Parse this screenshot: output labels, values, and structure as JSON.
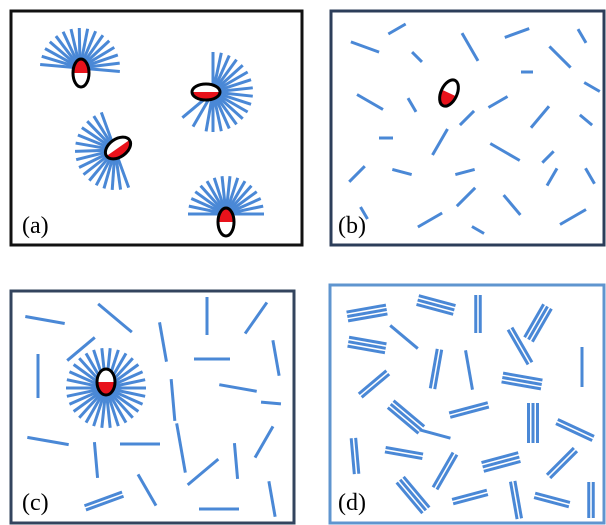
{
  "figure": {
    "panels": [
      {
        "id": "a",
        "label": "(a)"
      },
      {
        "id": "b",
        "label": "(b)"
      },
      {
        "id": "c",
        "label": "(c)"
      },
      {
        "id": "d",
        "label": "(d)"
      }
    ]
  },
  "colors": {
    "rod": "#4a88d6",
    "core_fill": "#e8121b",
    "core_outline": "#000000",
    "frame_a": "#111111",
    "frame_b": "#2c3e5a",
    "frame_c": "#33445e",
    "frame_d": "#5f95cf"
  }
}
